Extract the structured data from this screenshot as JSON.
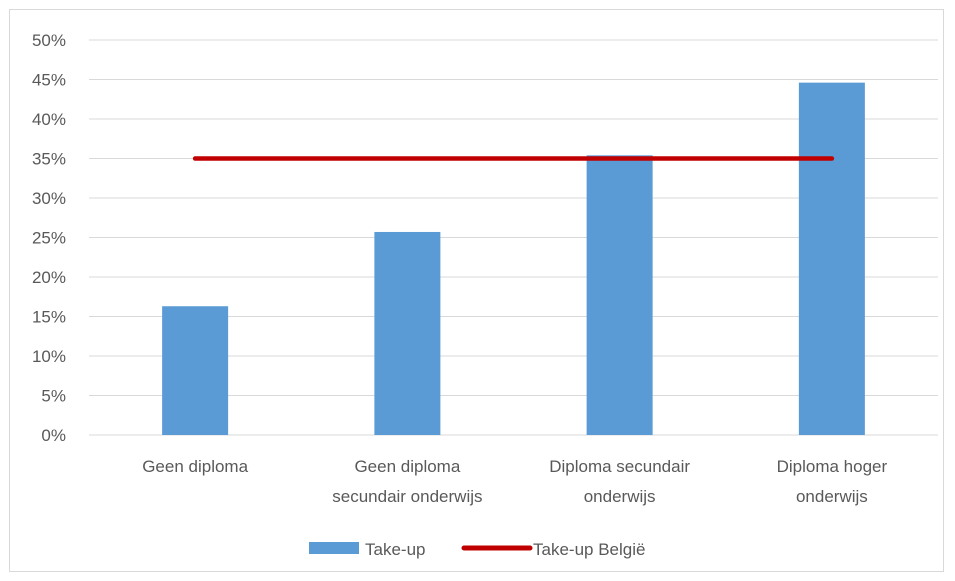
{
  "chart_data": {
    "type": "bar",
    "categories": [
      [
        "Geen diploma"
      ],
      [
        "Geen diploma",
        "secundair onderwijs"
      ],
      [
        "Diploma secundair",
        "onderwijs"
      ],
      [
        "Diploma hoger",
        "onderwijs"
      ]
    ],
    "series": [
      {
        "name": "Take-up",
        "type": "bar",
        "values": [
          0.163,
          0.257,
          0.354,
          0.446
        ]
      },
      {
        "name": "Take-up België",
        "type": "line",
        "values": [
          0.35,
          0.35,
          0.35,
          0.35
        ]
      }
    ],
    "ylim": [
      0,
      0.5
    ],
    "yticks": [
      "0%",
      "5%",
      "10%",
      "15%",
      "20%",
      "25%",
      "30%",
      "35%",
      "40%",
      "45%",
      "50%"
    ],
    "grid": true,
    "legend_position": "bottom",
    "colors": {
      "bar": "#5b9bd5",
      "line": "#c00000",
      "grid": "#d9d9d9",
      "text": "#595959"
    }
  }
}
